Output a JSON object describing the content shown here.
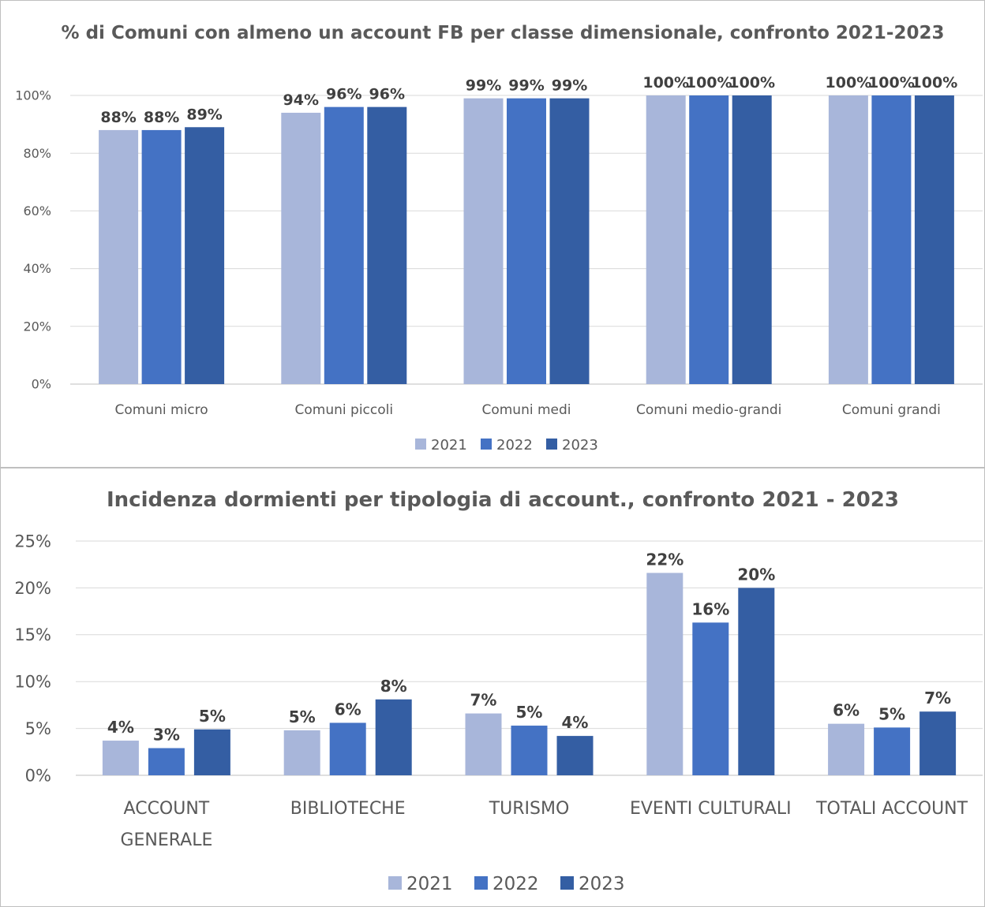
{
  "colors": {
    "2021": "#a8b6da",
    "2022": "#4472c4",
    "2023": "#345ea3"
  },
  "chart_data": [
    {
      "type": "bar",
      "title": "% di Comuni con almeno un account FB per classe dimensionale, confronto 2021-2023",
      "categories": [
        "Comuni micro",
        "Comuni piccoli",
        "Comuni medi",
        "Comuni medio-grandi",
        "Comuni grandi"
      ],
      "series": [
        {
          "name": "2021",
          "values": [
            88,
            94,
            99,
            100,
            100
          ]
        },
        {
          "name": "2022",
          "values": [
            88,
            96,
            99,
            100,
            100
          ]
        },
        {
          "name": "2023",
          "values": [
            89,
            96,
            99,
            100,
            100
          ]
        }
      ],
      "data_labels": [
        [
          "88%",
          "94%",
          "99%",
          "100%",
          "100%"
        ],
        [
          "88%",
          "96%",
          "99%",
          "100%",
          "100%"
        ],
        [
          "89%",
          "96%",
          "99%",
          "100%",
          "100%"
        ]
      ],
      "yticks": [
        "0%",
        "20%",
        "40%",
        "60%",
        "80%",
        "100%"
      ],
      "ylim": [
        0,
        100
      ],
      "grid": true,
      "legend": "bottom"
    },
    {
      "type": "bar",
      "title": "Incidenza dormienti per tipologia di account., confronto 2021 - 2023",
      "categories": [
        [
          "ACCOUNT",
          "GENERALE"
        ],
        [
          "BIBLIOTECHE"
        ],
        [
          "TURISMO"
        ],
        [
          "EVENTI CULTURALI"
        ],
        [
          "TOTALI ACCOUNT"
        ]
      ],
      "series": [
        {
          "name": "2021",
          "values": [
            3.7,
            4.8,
            6.6,
            21.6,
            5.5
          ]
        },
        {
          "name": "2022",
          "values": [
            2.9,
            5.6,
            5.3,
            16.3,
            5.1
          ]
        },
        {
          "name": "2023",
          "values": [
            4.9,
            8.1,
            4.2,
            20.0,
            6.8
          ]
        }
      ],
      "data_labels": [
        [
          "4%",
          "5%",
          "7%",
          "22%",
          "6%"
        ],
        [
          "3%",
          "6%",
          "5%",
          "16%",
          "5%"
        ],
        [
          "5%",
          "8%",
          "4%",
          "20%",
          "7%"
        ]
      ],
      "yticks": [
        "0%",
        "5%",
        "10%",
        "15%",
        "20%",
        "25%"
      ],
      "ylim": [
        0,
        25
      ],
      "grid": true,
      "legend": "bottom"
    }
  ]
}
